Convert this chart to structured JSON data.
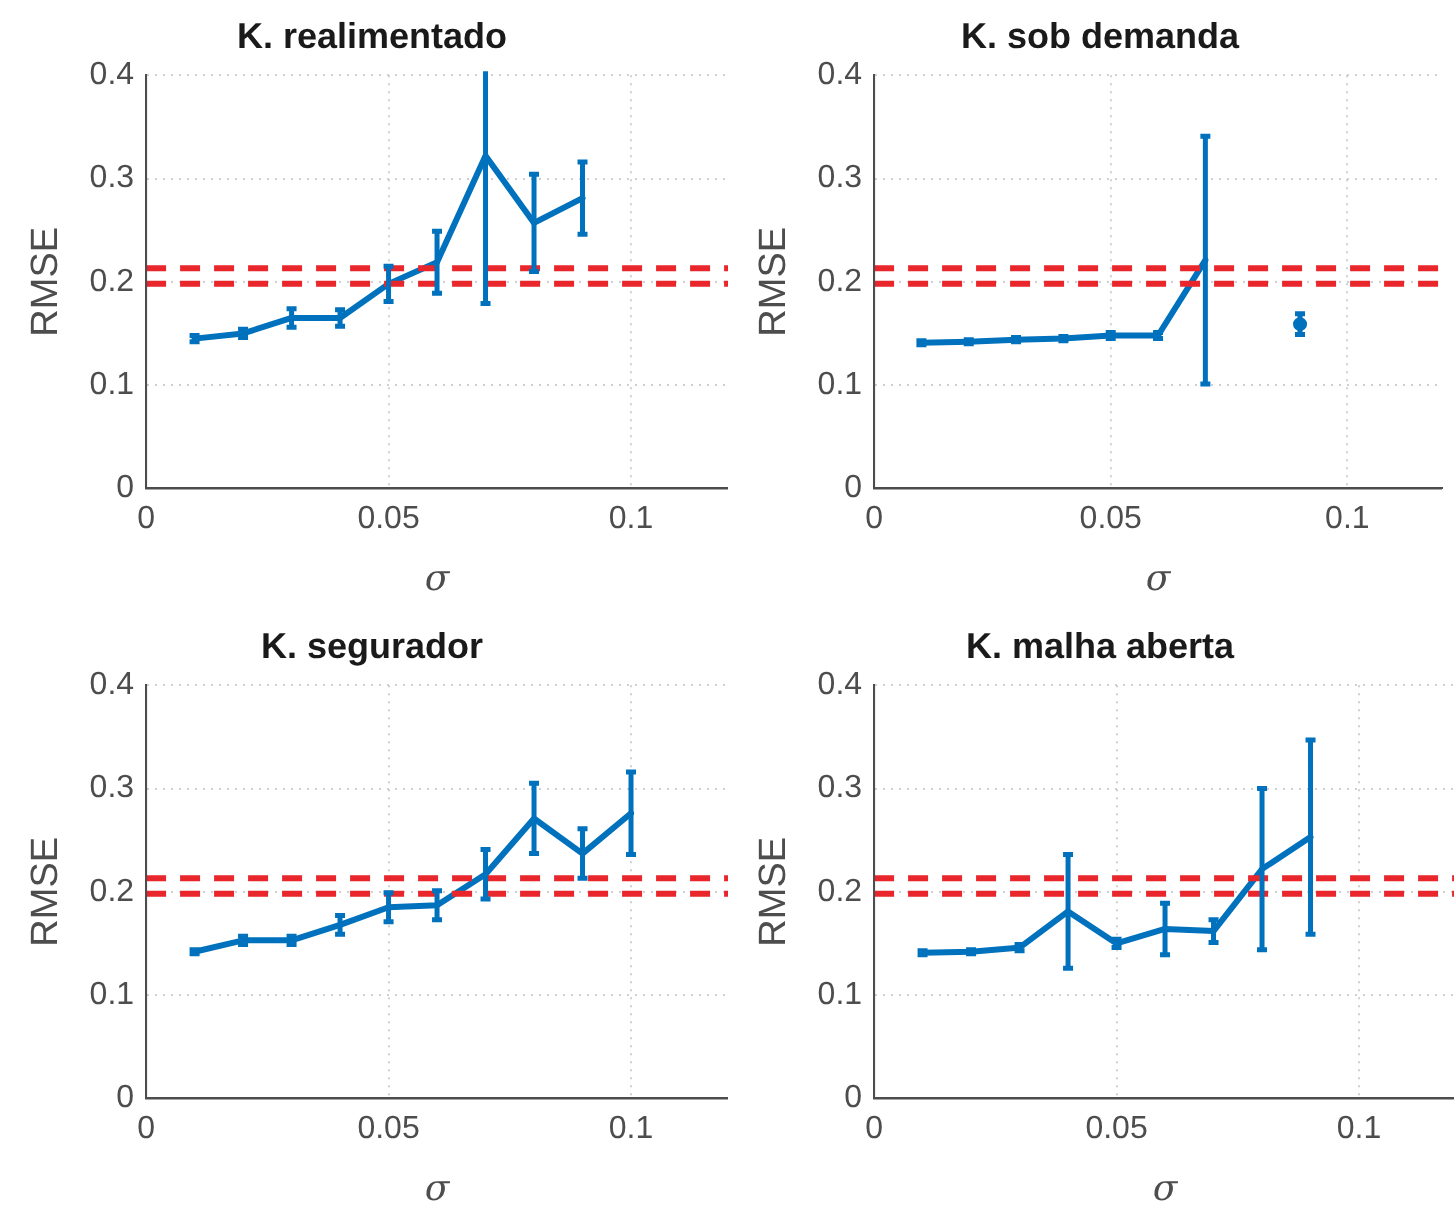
{
  "chart_data": [
    {
      "type": "line",
      "title": "K. realimentado",
      "xlabel": "σ",
      "ylabel": "RMSE",
      "x": [
        0.01,
        0.02,
        0.03,
        0.04,
        0.05,
        0.06,
        0.07,
        0.08,
        0.09
      ],
      "xlim": [
        0,
        0.12
      ],
      "xticks": [
        0,
        0.05,
        0.1
      ],
      "ylim": [
        0,
        0.4
      ],
      "yticks": [
        0,
        0.1,
        0.2,
        0.3,
        0.4
      ],
      "grid": true,
      "legend": false,
      "marker": "none",
      "line_style": "solid",
      "series": [
        {
          "color": "#0072bd",
          "values": [
            0.145,
            0.15,
            0.165,
            0.165,
            0.198,
            0.219,
            0.322,
            0.257,
            0.281
          ],
          "errors": [
            0.003,
            0.004,
            0.009,
            0.008,
            0.017,
            0.03,
            0.143,
            0.047,
            0.035
          ]
        }
      ],
      "ref_lines": [
        {
          "axis": "y",
          "value": 0.213,
          "color": "#e8262b",
          "line_style": "dashed"
        },
        {
          "axis": "y",
          "value": 0.198,
          "color": "#e8262b",
          "line_style": "dashed"
        }
      ]
    },
    {
      "type": "line",
      "title": "K. sob demanda",
      "xlabel": "σ",
      "ylabel": "RMSE",
      "x": [
        0.01,
        0.02,
        0.03,
        0.04,
        0.05,
        0.06,
        0.07,
        0.08,
        0.09
      ],
      "xlim": [
        0,
        0.12
      ],
      "xticks": [
        0,
        0.05,
        0.1
      ],
      "ylim": [
        0,
        0.4
      ],
      "yticks": [
        0,
        0.1,
        0.2,
        0.3,
        0.4
      ],
      "grid": true,
      "legend": false,
      "marker": "none",
      "line_style": "solid",
      "series": [
        {
          "color": "#0072bd",
          "values": [
            0.141,
            0.142,
            0.144,
            0.145,
            0.148,
            0.148,
            0.221,
            null,
            0.159
          ],
          "errors": [
            0.002,
            0.002,
            0.002,
            0.002,
            0.003,
            0.003,
            0.12,
            null,
            0.01
          ]
        }
      ],
      "ref_lines": [
        {
          "axis": "y",
          "value": 0.213,
          "color": "#e8262b",
          "line_style": "dashed"
        },
        {
          "axis": "y",
          "value": 0.198,
          "color": "#e8262b",
          "line_style": "dashed"
        }
      ]
    },
    {
      "type": "line",
      "title": "K. segurador",
      "xlabel": "σ",
      "ylabel": "RMSE",
      "x": [
        0.01,
        0.02,
        0.03,
        0.04,
        0.05,
        0.06,
        0.07,
        0.08,
        0.09,
        0.1
      ],
      "xlim": [
        0,
        0.12
      ],
      "xticks": [
        0,
        0.05,
        0.1
      ],
      "ylim": [
        0,
        0.4
      ],
      "yticks": [
        0,
        0.1,
        0.2,
        0.3,
        0.4
      ],
      "grid": true,
      "legend": false,
      "marker": "none",
      "line_style": "solid",
      "series": [
        {
          "color": "#0072bd",
          "values": [
            0.142,
            0.153,
            0.153,
            0.168,
            0.185,
            0.187,
            0.217,
            0.271,
            0.237,
            0.276
          ],
          "errors": [
            0.002,
            0.004,
            0.004,
            0.009,
            0.014,
            0.014,
            0.024,
            0.034,
            0.024,
            0.04
          ]
        }
      ],
      "ref_lines": [
        {
          "axis": "y",
          "value": 0.213,
          "color": "#e8262b",
          "line_style": "dashed"
        },
        {
          "axis": "y",
          "value": 0.198,
          "color": "#e8262b",
          "line_style": "dashed"
        }
      ]
    },
    {
      "type": "line",
      "title": "K. malha aberta",
      "xlabel": "σ",
      "ylabel": "RMSE",
      "x": [
        0.01,
        0.02,
        0.03,
        0.04,
        0.05,
        0.06,
        0.07,
        0.08,
        0.09
      ],
      "xlim": [
        0,
        0.12
      ],
      "xticks": [
        0,
        0.05,
        0.1
      ],
      "ylim": [
        0,
        0.4
      ],
      "yticks": [
        0,
        0.1,
        0.2,
        0.3,
        0.4
      ],
      "grid": true,
      "legend": false,
      "marker": "none",
      "line_style": "solid",
      "series": [
        {
          "color": "#0072bd",
          "values": [
            0.141,
            0.142,
            0.146,
            0.181,
            0.15,
            0.164,
            0.162,
            0.222,
            0.253
          ],
          "errors": [
            0.002,
            0.002,
            0.003,
            0.055,
            0.004,
            0.025,
            0.011,
            0.078,
            0.094
          ]
        }
      ],
      "ref_lines": [
        {
          "axis": "y",
          "value": 0.213,
          "color": "#e8262b",
          "line_style": "dashed"
        },
        {
          "axis": "y",
          "value": 0.198,
          "color": "#e8262b",
          "line_style": "dashed"
        }
      ]
    }
  ]
}
